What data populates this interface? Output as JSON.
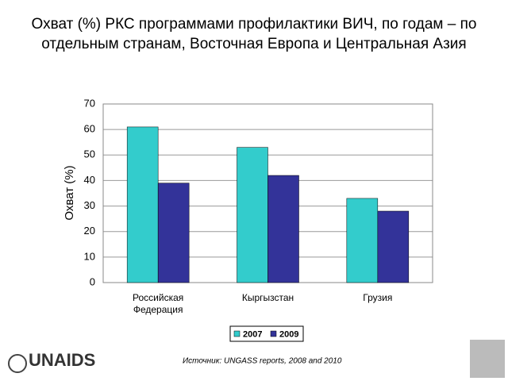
{
  "chart_data": {
    "type": "bar",
    "title": "Охват (%) РКС программами профилактики ВИЧ, по годам – по отдельным странам, Восточная Европа и Центральная Азия",
    "ylabel": "Охват (%)",
    "categories": [
      "Российская Федерация",
      "Кыргызстан",
      "Грузия"
    ],
    "series": [
      {
        "name": "2007",
        "color": "#33cccc",
        "values": [
          61,
          53,
          33
        ]
      },
      {
        "name": "2009",
        "color": "#333399",
        "values": [
          39,
          42,
          28
        ]
      }
    ],
    "ylim": [
      0,
      70
    ],
    "yticks": [
      0,
      10,
      20,
      30,
      40,
      50,
      60,
      70
    ],
    "grid": true,
    "legend": "bottom",
    "annotations": [
      "Источник: UNGASS reports, 2008 and 2010"
    ]
  },
  "logo": {
    "text": "UNAIDS"
  }
}
